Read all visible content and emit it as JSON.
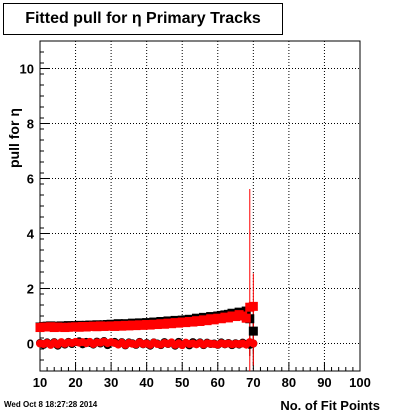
{
  "chart_data": {
    "type": "scatter",
    "title": "Fitted pull for η Primary Tracks",
    "xlabel": "No. of Fit Points",
    "ylabel": "pull for η",
    "xlim": [
      10,
      100
    ],
    "ylim": [
      -1,
      11
    ],
    "xticks": [
      10,
      20,
      30,
      40,
      50,
      60,
      70,
      80,
      90,
      100
    ],
    "yticks": [
      0,
      2,
      4,
      6,
      8,
      10
    ],
    "grid": true,
    "series": [
      {
        "color": "#000000",
        "marker": "square",
        "x": [
          10,
          11,
          12,
          13,
          14,
          15,
          16,
          17,
          18,
          19,
          20,
          21,
          22,
          23,
          24,
          25,
          26,
          27,
          28,
          29,
          30,
          31,
          32,
          33,
          34,
          35,
          36,
          37,
          38,
          39,
          40,
          41,
          42,
          43,
          44,
          45,
          46,
          47,
          48,
          49,
          50,
          51,
          52,
          53,
          54,
          55,
          56,
          57,
          58,
          59,
          60,
          61,
          62,
          63,
          64,
          65,
          66,
          67,
          68,
          69,
          70
        ],
        "y": [
          0.6,
          0.62,
          0.63,
          0.64,
          0.62,
          0.63,
          0.64,
          0.62,
          0.65,
          0.64,
          0.65,
          0.66,
          0.64,
          0.66,
          0.67,
          0.65,
          0.68,
          0.66,
          0.68,
          0.69,
          0.7,
          0.68,
          0.72,
          0.7,
          0.72,
          0.71,
          0.74,
          0.72,
          0.75,
          0.74,
          0.76,
          0.75,
          0.78,
          0.76,
          0.8,
          0.79,
          0.82,
          0.8,
          0.84,
          0.82,
          0.85,
          0.86,
          0.88,
          0.87,
          0.92,
          0.9,
          0.95,
          0.93,
          0.98,
          0.96,
          1.0,
          1.02,
          1.04,
          1.06,
          1.1,
          1.08,
          1.14,
          1.12,
          1.18,
          0.9,
          0.45
        ],
        "err": [
          0.06,
          0.05,
          0.05,
          0.04,
          0.04,
          0.04,
          0.04,
          0.04,
          0.04,
          0.04,
          0.04,
          0.04,
          0.04,
          0.04,
          0.04,
          0.04,
          0.04,
          0.04,
          0.04,
          0.04,
          0.04,
          0.04,
          0.04,
          0.04,
          0.04,
          0.04,
          0.04,
          0.04,
          0.04,
          0.04,
          0.04,
          0.04,
          0.04,
          0.04,
          0.04,
          0.04,
          0.04,
          0.04,
          0.04,
          0.04,
          0.04,
          0.04,
          0.04,
          0.04,
          0.04,
          0.04,
          0.05,
          0.05,
          0.05,
          0.05,
          0.05,
          0.06,
          0.06,
          0.06,
          0.07,
          0.07,
          0.08,
          0.09,
          0.15,
          0.3,
          0.8
        ]
      },
      {
        "color": "#ff0000",
        "marker": "square",
        "x": [
          10,
          11,
          12,
          13,
          14,
          15,
          16,
          17,
          18,
          19,
          20,
          21,
          22,
          23,
          24,
          25,
          26,
          27,
          28,
          29,
          30,
          31,
          32,
          33,
          34,
          35,
          36,
          37,
          38,
          39,
          40,
          41,
          42,
          43,
          44,
          45,
          46,
          47,
          48,
          49,
          50,
          51,
          52,
          53,
          54,
          55,
          56,
          57,
          58,
          59,
          60,
          61,
          62,
          63,
          64,
          65,
          66,
          67,
          68,
          69,
          70
        ],
        "y": [
          0.58,
          0.6,
          0.6,
          0.61,
          0.58,
          0.6,
          0.59,
          0.58,
          0.59,
          0.6,
          0.61,
          0.59,
          0.62,
          0.6,
          0.62,
          0.63,
          0.61,
          0.64,
          0.62,
          0.63,
          0.64,
          0.62,
          0.65,
          0.63,
          0.66,
          0.64,
          0.67,
          0.65,
          0.68,
          0.66,
          0.69,
          0.67,
          0.7,
          0.69,
          0.72,
          0.7,
          0.74,
          0.72,
          0.76,
          0.74,
          0.78,
          0.76,
          0.8,
          0.78,
          0.83,
          0.8,
          0.86,
          0.83,
          0.9,
          0.86,
          0.92,
          0.9,
          0.96,
          0.93,
          1.0,
          0.98,
          1.05,
          1.0,
          0.92,
          1.32,
          1.35
        ],
        "err": [
          0.06,
          0.05,
          0.05,
          0.04,
          0.04,
          0.04,
          0.04,
          0.04,
          0.04,
          0.04,
          0.04,
          0.04,
          0.04,
          0.04,
          0.04,
          0.04,
          0.04,
          0.04,
          0.04,
          0.04,
          0.04,
          0.04,
          0.04,
          0.04,
          0.04,
          0.04,
          0.04,
          0.04,
          0.04,
          0.04,
          0.04,
          0.04,
          0.04,
          0.04,
          0.04,
          0.04,
          0.04,
          0.04,
          0.04,
          0.04,
          0.04,
          0.04,
          0.04,
          0.04,
          0.04,
          0.04,
          0.05,
          0.05,
          0.05,
          0.05,
          0.05,
          0.06,
          0.06,
          0.06,
          0.07,
          0.07,
          0.08,
          0.09,
          0.15,
          4.3,
          1.2
        ]
      },
      {
        "color": "#000000",
        "marker": "circle",
        "x": [
          10,
          11,
          12,
          13,
          14,
          15,
          16,
          17,
          18,
          19,
          20,
          21,
          22,
          23,
          24,
          25,
          26,
          27,
          28,
          29,
          30,
          31,
          32,
          33,
          34,
          35,
          36,
          37,
          38,
          39,
          40,
          41,
          42,
          43,
          44,
          45,
          46,
          47,
          48,
          49,
          50,
          51,
          52,
          53,
          54,
          55,
          56,
          57,
          58,
          59,
          60,
          61,
          62,
          63,
          64,
          65,
          66,
          67,
          68,
          69,
          70
        ],
        "y": [
          0.02,
          -0.05,
          0.04,
          -0.03,
          0.05,
          -0.08,
          0.03,
          -0.04,
          0.06,
          -0.02,
          0.05,
          0.08,
          -0.03,
          0.06,
          0.02,
          -0.04,
          0.07,
          0.0,
          0.09,
          -0.06,
          0.03,
          0.06,
          -0.02,
          0.05,
          -0.07,
          0.04,
          0.01,
          -0.05,
          0.06,
          -0.03,
          0.02,
          -0.08,
          0.04,
          0.0,
          -0.06,
          0.05,
          -0.02,
          0.03,
          -0.08,
          0.06,
          -0.04,
          0.02,
          -0.07,
          0.05,
          -0.01,
          0.04,
          -0.06,
          0.03,
          -0.02,
          0.0,
          -0.05,
          0.04,
          -0.03,
          0.02,
          -0.06,
          0.01,
          -0.04,
          0.03,
          -0.02,
          -0.05,
          0.0
        ],
        "err": [
          0.06,
          0.05,
          0.05,
          0.04,
          0.04,
          0.04,
          0.04,
          0.04,
          0.04,
          0.04,
          0.04,
          0.04,
          0.04,
          0.04,
          0.04,
          0.04,
          0.04,
          0.04,
          0.04,
          0.04,
          0.04,
          0.04,
          0.04,
          0.04,
          0.04,
          0.04,
          0.04,
          0.04,
          0.04,
          0.04,
          0.04,
          0.04,
          0.04,
          0.04,
          0.04,
          0.04,
          0.04,
          0.04,
          0.04,
          0.04,
          0.04,
          0.04,
          0.04,
          0.04,
          0.04,
          0.04,
          0.05,
          0.05,
          0.05,
          0.05,
          0.05,
          0.06,
          0.06,
          0.06,
          0.07,
          0.07,
          0.08,
          0.09,
          0.15,
          0.4,
          0.8
        ]
      },
      {
        "color": "#ff0000",
        "marker": "circle",
        "x": [
          10,
          11,
          12,
          13,
          14,
          15,
          16,
          17,
          18,
          19,
          20,
          21,
          22,
          23,
          24,
          25,
          26,
          27,
          28,
          29,
          30,
          31,
          32,
          33,
          34,
          35,
          36,
          37,
          38,
          39,
          40,
          41,
          42,
          43,
          44,
          45,
          46,
          47,
          48,
          49,
          50,
          51,
          52,
          53,
          54,
          55,
          56,
          57,
          58,
          59,
          60,
          61,
          62,
          63,
          64,
          65,
          66,
          67,
          68,
          69,
          70
        ],
        "y": [
          0.0,
          -0.02,
          0.02,
          -0.05,
          0.03,
          -0.04,
          0.05,
          -0.01,
          0.04,
          0.02,
          0.06,
          0.03,
          0.05,
          0.01,
          0.06,
          -0.02,
          0.04,
          0.03,
          0.07,
          0.01,
          0.05,
          0.02,
          -0.04,
          0.03,
          -0.05,
          0.02,
          -0.01,
          -0.03,
          0.04,
          -0.02,
          0.0,
          -0.05,
          0.03,
          -0.02,
          -0.04,
          0.02,
          -0.01,
          0.04,
          -0.05,
          0.01,
          -0.06,
          0.03,
          -0.02,
          0.0,
          -0.03,
          0.02,
          -0.04,
          0.01,
          -0.01,
          -0.02,
          -0.04,
          0.01,
          -0.02,
          0.0,
          -0.03,
          -0.01,
          -0.02,
          0.0,
          -0.04,
          0.05,
          0.0
        ],
        "err": [
          0.06,
          0.05,
          0.05,
          0.04,
          0.04,
          0.04,
          0.04,
          0.04,
          0.04,
          0.04,
          0.04,
          0.04,
          0.04,
          0.04,
          0.04,
          0.04,
          0.04,
          0.04,
          0.04,
          0.04,
          0.04,
          0.04,
          0.04,
          0.04,
          0.04,
          0.04,
          0.04,
          0.04,
          0.04,
          0.04,
          0.04,
          0.04,
          0.04,
          0.04,
          0.04,
          0.04,
          0.04,
          0.04,
          0.04,
          0.04,
          0.04,
          0.04,
          0.04,
          0.04,
          0.04,
          0.04,
          0.05,
          0.05,
          0.05,
          0.05,
          0.05,
          0.06,
          0.06,
          0.06,
          0.07,
          0.07,
          0.08,
          0.09,
          0.15,
          0.5,
          0.8
        ]
      }
    ]
  },
  "footer": {
    "timestamp": "Wed Oct  8 18:27:28 2014"
  }
}
